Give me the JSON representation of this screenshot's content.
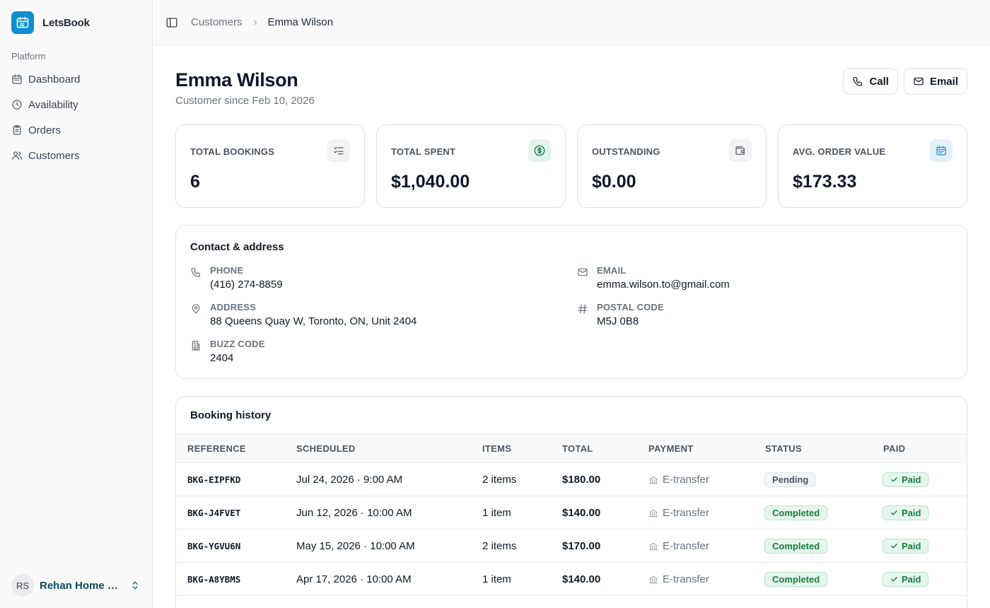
{
  "app": {
    "name": "LetsBook"
  },
  "sidebar": {
    "section_label": "Platform",
    "items": [
      {
        "label": "Dashboard",
        "icon": "calendar-icon"
      },
      {
        "label": "Availability",
        "icon": "clock-icon"
      },
      {
        "label": "Orders",
        "icon": "clipboard-icon"
      },
      {
        "label": "Customers",
        "icon": "users-icon"
      }
    ],
    "user": {
      "initials": "RS",
      "name": "Rehan Home Ser..."
    }
  },
  "breadcrumb": {
    "parent": "Customers",
    "current": "Emma Wilson"
  },
  "customer": {
    "name": "Emma Wilson",
    "since": "Customer since Feb 10, 2026"
  },
  "actions": {
    "call_label": "Call",
    "email_label": "Email"
  },
  "stats": [
    {
      "label": "TOTAL BOOKINGS",
      "value": "6",
      "icon": "checklist-icon"
    },
    {
      "label": "TOTAL SPENT",
      "value": "$1,040.00",
      "icon": "dollar-circle-icon"
    },
    {
      "label": "OUTSTANDING",
      "value": "$0.00",
      "icon": "wallet-icon"
    },
    {
      "label": "AVG. ORDER VALUE",
      "value": "$173.33",
      "icon": "calendar-icon"
    }
  ],
  "contact": {
    "title": "Contact & address",
    "phone": {
      "label": "PHONE",
      "value": "(416) 274-8859"
    },
    "email": {
      "label": "EMAIL",
      "value": "emma.wilson.to@gmail.com"
    },
    "address": {
      "label": "ADDRESS",
      "value": "88 Queens Quay W, Toronto, ON, Unit 2404"
    },
    "postal": {
      "label": "POSTAL CODE",
      "value": "M5J 0B8"
    },
    "buzz": {
      "label": "BUZZ CODE",
      "value": "2404"
    }
  },
  "history": {
    "title": "Booking history",
    "columns": [
      "REFERENCE",
      "SCHEDULED",
      "ITEMS",
      "TOTAL",
      "PAYMENT",
      "STATUS",
      "PAID"
    ],
    "rows": [
      {
        "ref": "BKG-EIPFKD",
        "scheduled": "Jul 24, 2026 · 9:00 AM",
        "items": "2 items",
        "total": "$180.00",
        "payment": "E-transfer",
        "status": "Pending",
        "paid": "Paid"
      },
      {
        "ref": "BKG-J4FVET",
        "scheduled": "Jun 12, 2026 · 10:00 AM",
        "items": "1 item",
        "total": "$140.00",
        "payment": "E-transfer",
        "status": "Completed",
        "paid": "Paid"
      },
      {
        "ref": "BKG-YGVU6N",
        "scheduled": "May 15, 2026 · 10:00 AM",
        "items": "2 items",
        "total": "$170.00",
        "payment": "E-transfer",
        "status": "Completed",
        "paid": "Paid"
      },
      {
        "ref": "BKG-A8YBMS",
        "scheduled": "Apr 17, 2026 · 10:00 AM",
        "items": "1 item",
        "total": "$140.00",
        "payment": "E-transfer",
        "status": "Completed",
        "paid": "Paid"
      }
    ]
  },
  "colors": {
    "brand": "#0f8ed0",
    "success": "#15803d",
    "text": "#111827",
    "muted": "#6b7280"
  }
}
